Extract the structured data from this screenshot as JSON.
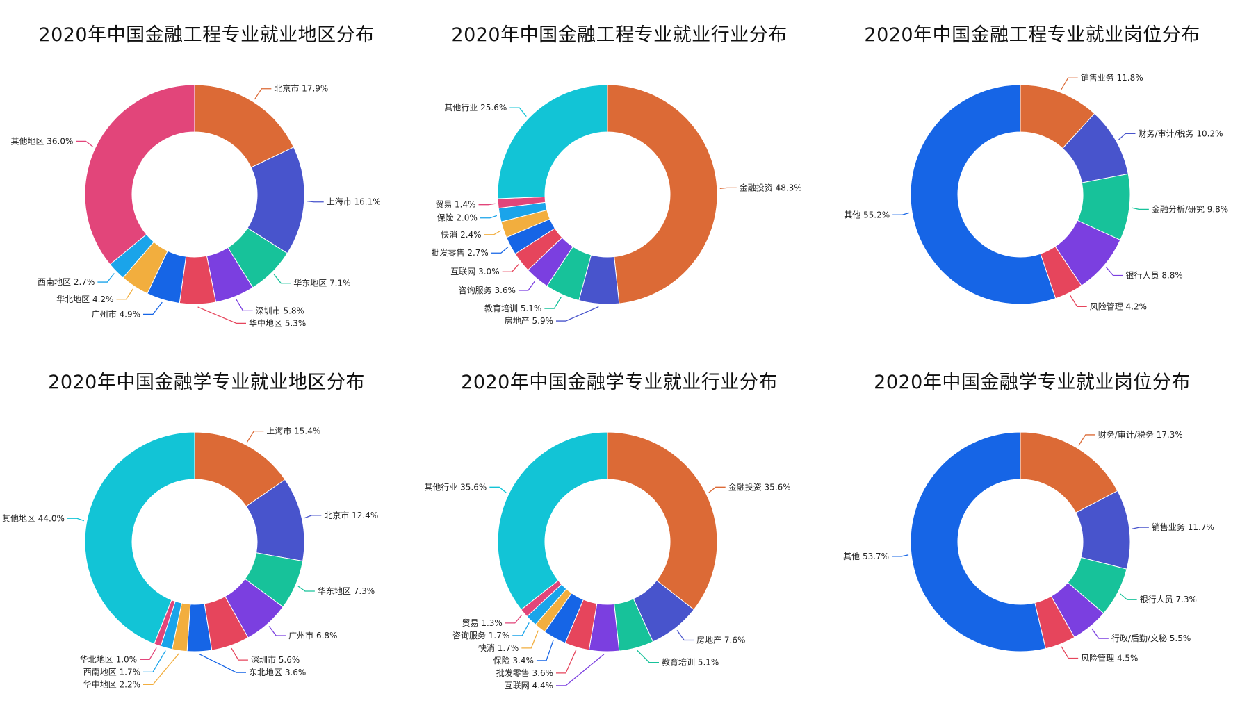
{
  "chart_data": [
    {
      "type": "pie",
      "title": "2020年中国金融工程专业就业地区分布",
      "series": [
        {
          "labels": [
            "北京市",
            "上海市",
            "华东地区",
            "深圳市",
            "华中地区",
            "广州市",
            "华北地区",
            "西南地区",
            "其他地区"
          ],
          "values": [
            17.9,
            16.1,
            7.1,
            5.8,
            5.3,
            4.9,
            4.2,
            2.7,
            36.0
          ],
          "colors": [
            "#dc6a36",
            "#4854cc",
            "#17c29a",
            "#7b3fe0",
            "#e6455c",
            "#1665e6",
            "#f2ae3e",
            "#1aa4ea",
            "#e2457a"
          ]
        }
      ],
      "display_labels": [
        "北京市 17.9%",
        "上海市 16.1%",
        "华东地区 7.1%",
        "深圳市 5.8%",
        "华中地区 5.3%",
        "广州市 4.9%",
        "华北地区 4.2%",
        "西南地区 2.7%",
        "其他地区 36.0%"
      ]
    },
    {
      "type": "pie",
      "title": "2020年中国金融工程专业就业行业分布",
      "series": [
        {
          "labels": [
            "金融投资",
            "房地产",
            "教育培训",
            "咨询服务",
            "互联网",
            "批发零售",
            "快消",
            "保险",
            "贸易",
            "其他行业"
          ],
          "values": [
            48.3,
            5.9,
            5.1,
            3.6,
            3.0,
            2.7,
            2.4,
            2.0,
            1.4,
            25.6
          ],
          "colors": [
            "#dc6a36",
            "#4854cc",
            "#17c29a",
            "#7b3fe0",
            "#e6455c",
            "#1665e6",
            "#f2ae3e",
            "#1aa4ea",
            "#e2457a",
            "#12c4d6"
          ]
        }
      ],
      "display_labels": [
        "金融投资 48.3%",
        "房地产 5.9%",
        "教育培训 5.1%",
        "咨询服务 3.6%",
        "互联网 3.0%",
        "批发零售 2.7%",
        "快消 2.4%",
        "保险 2.0%",
        "贸易 1.4%",
        "其他行业 25.6%"
      ]
    },
    {
      "type": "pie",
      "title": "2020年中国金融工程专业就业岗位分布",
      "series": [
        {
          "labels": [
            "销售业务",
            "财务/审计/税务",
            "金融分析/研究",
            "银行人员",
            "风险管理",
            "其他"
          ],
          "values": [
            11.8,
            10.2,
            9.8,
            8.8,
            4.2,
            55.2
          ],
          "colors": [
            "#dc6a36",
            "#4854cc",
            "#17c29a",
            "#7b3fe0",
            "#e6455c",
            "#1665e6"
          ]
        }
      ],
      "display_labels": [
        "销售业务 11.8%",
        "财务/审计/税务 10.2%",
        "金融分析/研究 9.8%",
        "银行人员 8.8%",
        "风险管理 4.2%",
        "其他 55.2%"
      ]
    },
    {
      "type": "pie",
      "title": "2020年中国金融学专业就业地区分布",
      "series": [
        {
          "labels": [
            "上海市",
            "北京市",
            "华东地区",
            "广州市",
            "深圳市",
            "东北地区",
            "华中地区",
            "西南地区",
            "华北地区",
            "其他地区"
          ],
          "values": [
            15.4,
            12.4,
            7.3,
            6.8,
            5.6,
            3.6,
            2.2,
            1.7,
            1.0,
            44.0
          ],
          "colors": [
            "#dc6a36",
            "#4854cc",
            "#17c29a",
            "#7b3fe0",
            "#e6455c",
            "#1665e6",
            "#f2ae3e",
            "#1aa4ea",
            "#e2457a",
            "#12c4d6"
          ]
        }
      ],
      "display_labels": [
        "上海市 15.4%",
        "北京市 12.4%",
        "华东地区 7.3%",
        "广州市 6.8%",
        "深圳市 5.6%",
        "东北地区 3.6%",
        "华中地区 2.2%",
        "西南地区 1.7%",
        "华北地区 1.0%",
        "其他地区 44.0%"
      ]
    },
    {
      "type": "pie",
      "title": "2020年中国金融学专业就业行业分布",
      "series": [
        {
          "labels": [
            "金融投资",
            "房地产",
            "教育培训",
            "互联网",
            "批发零售",
            "保险",
            "快消",
            "咨询服务",
            "贸易",
            "其他行业"
          ],
          "values": [
            35.6,
            7.6,
            5.1,
            4.4,
            3.6,
            3.4,
            1.7,
            1.7,
            1.3,
            35.6
          ],
          "colors": [
            "#dc6a36",
            "#4854cc",
            "#17c29a",
            "#7b3fe0",
            "#e6455c",
            "#1665e6",
            "#f2ae3e",
            "#1aa4ea",
            "#e2457a",
            "#12c4d6"
          ]
        }
      ],
      "display_labels": [
        "金融投资 35.6%",
        "房地产 7.6%",
        "教育培训 5.1%",
        "互联网 4.4%",
        "批发零售 3.6%",
        "保险 3.4%",
        "快消 1.7%",
        "咨询服务 1.7%",
        "贸易 1.3%",
        "其他行业 35.6%"
      ]
    },
    {
      "type": "pie",
      "title": "2020年中国金融学专业就业岗位分布",
      "series": [
        {
          "labels": [
            "财务/审计/税务",
            "销售业务",
            "银行人员",
            "行政/后勤/文秘",
            "风险管理",
            "其他"
          ],
          "values": [
            17.3,
            11.7,
            7.3,
            5.5,
            4.5,
            53.7
          ],
          "colors": [
            "#dc6a36",
            "#4854cc",
            "#17c29a",
            "#7b3fe0",
            "#e6455c",
            "#1665e6"
          ]
        }
      ],
      "display_labels": [
        "财务/审计/税务 17.3%",
        "销售业务 11.7%",
        "银行人员 7.3%",
        "行政/后勤/文秘 5.5%",
        "风险管理 4.5%",
        "其他 53.7%"
      ]
    }
  ]
}
